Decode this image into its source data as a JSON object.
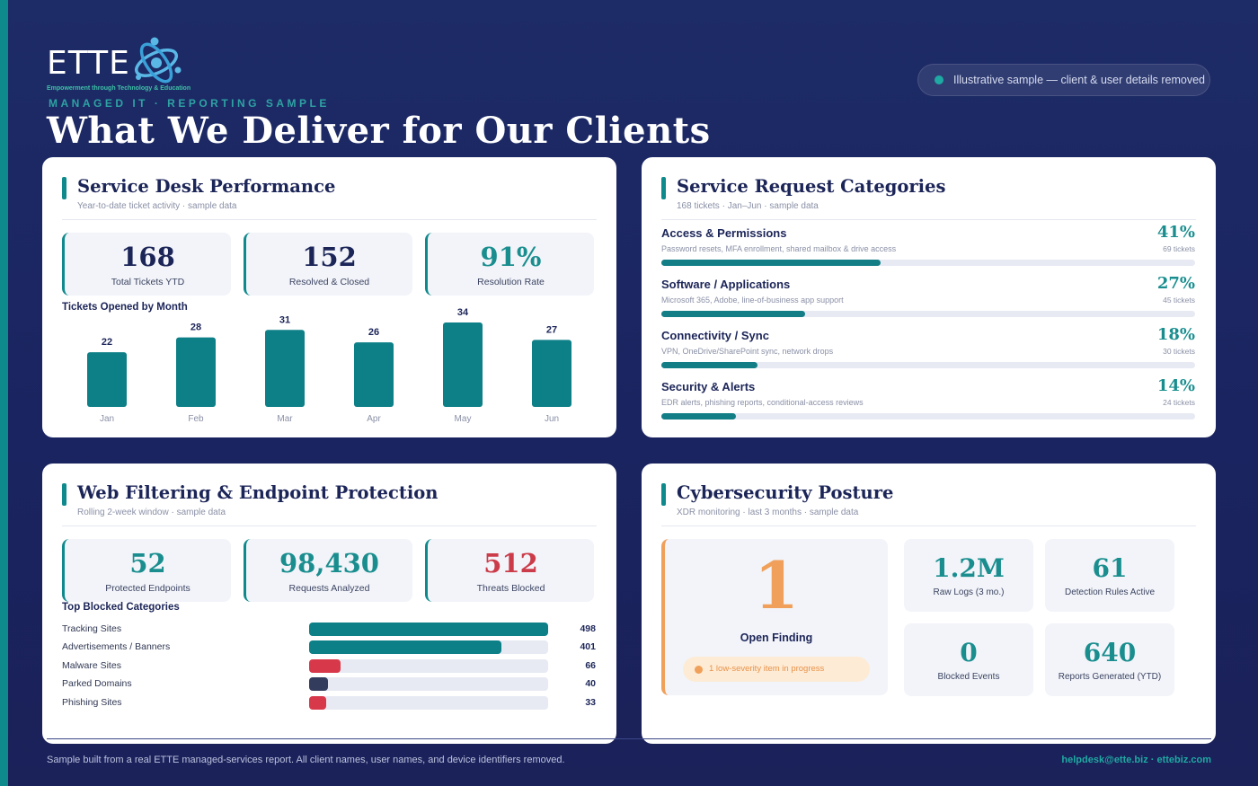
{
  "brand": {
    "wordmark": "ETTE",
    "tagline": "Empowerment through Technology & Education"
  },
  "header": {
    "eyebrow": "MANAGED IT · REPORTING SAMPLE",
    "title": "What We Deliver for Our Clients",
    "sample_notice": "Illustrative sample — client & user details removed"
  },
  "service_desk": {
    "title": "Service Desk Performance",
    "subtitle": "Year-to-date ticket activity · sample data",
    "stats": [
      {
        "value": "168",
        "label": "Total Tickets YTD"
      },
      {
        "value": "152",
        "label": "Resolved & Closed"
      },
      {
        "value": "91%",
        "label": "Resolution Rate"
      }
    ],
    "chart_label": "Tickets Opened by Month"
  },
  "chart_data": {
    "type": "bar",
    "title": "Tickets Opened by Month",
    "categories": [
      "Jan",
      "Feb",
      "Mar",
      "Apr",
      "May",
      "Jun"
    ],
    "values": [
      22,
      28,
      31,
      26,
      34,
      27
    ],
    "ylim": [
      0,
      34
    ],
    "grid": false,
    "color": "#0d7f87"
  },
  "requests": {
    "title": "Service Request Categories",
    "subtitle": "168 tickets · Jan–Jun · sample data",
    "items": [
      {
        "name": "Access & Permissions",
        "desc": "Password resets, MFA enrollment, shared mailbox & drive access",
        "pct": "41%",
        "count": "69 tickets",
        "share": 0.41
      },
      {
        "name": "Software / Applications",
        "desc": "Microsoft 365, Adobe, line-of-business app support",
        "pct": "27%",
        "count": "45 tickets",
        "share": 0.27
      },
      {
        "name": "Connectivity / Sync",
        "desc": "VPN, OneDrive/SharePoint sync, network drops",
        "pct": "18%",
        "count": "30 tickets",
        "share": 0.18
      },
      {
        "name": "Security & Alerts",
        "desc": "EDR alerts, phishing reports, conditional-access reviews",
        "pct": "14%",
        "count": "24 tickets",
        "share": 0.14
      }
    ]
  },
  "web_filtering": {
    "title": "Web Filtering & Endpoint Protection",
    "subtitle": "Rolling 2-week window · sample data",
    "stats": [
      {
        "value": "52",
        "label": "Protected Endpoints"
      },
      {
        "value": "98,430",
        "label": "Requests Analyzed"
      },
      {
        "value": "512",
        "label": "Threats Blocked"
      }
    ],
    "blocked_label": "Top Blocked Categories",
    "blocked": [
      {
        "name": "Tracking Sites",
        "value": 498,
        "color": "#0d7f87"
      },
      {
        "name": "Advertisements / Banners",
        "value": 401,
        "color": "#0d7f87"
      },
      {
        "name": "Malware Sites",
        "value": 66,
        "color": "#d8394a"
      },
      {
        "name": "Parked Domains",
        "value": 40,
        "color": "#333c5c"
      },
      {
        "name": "Phishing Sites",
        "value": 33,
        "color": "#d8394a"
      }
    ],
    "blocked_max": 498
  },
  "cyber": {
    "title": "Cybersecurity Posture",
    "subtitle": "XDR monitoring · last 3 months · sample data",
    "finding_value": "1",
    "finding_label": "Open Finding",
    "finding_note": "1 low-severity item in progress",
    "tiles": [
      {
        "value": "1.2M",
        "label": "Raw Logs (3 mo.)"
      },
      {
        "value": "61",
        "label": "Detection Rules Active"
      },
      {
        "value": "0",
        "label": "Blocked Events"
      },
      {
        "value": "640",
        "label": "Reports Generated (YTD)"
      }
    ]
  },
  "footer": {
    "note": "Sample built from a real ETTE managed-services report. All client names, user names, and device identifiers removed.",
    "contact": "helpdesk@ette.biz · ettebiz.com"
  }
}
